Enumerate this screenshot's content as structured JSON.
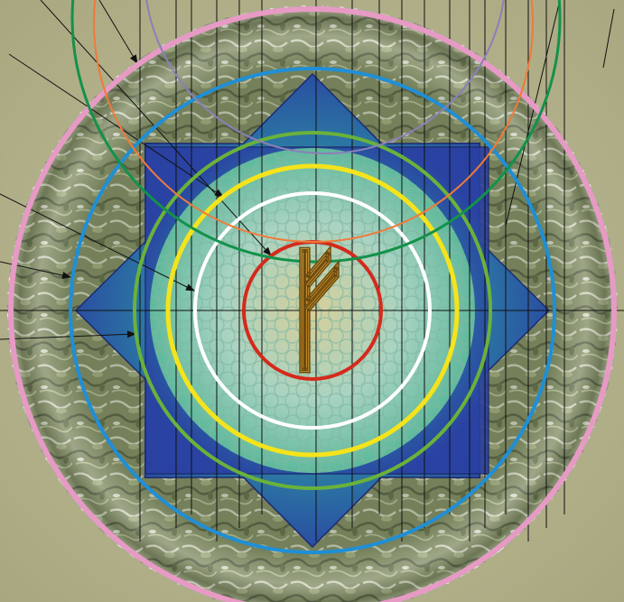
{
  "emblem": {
    "glyph": "ᚠ",
    "corner_mark": ""
  },
  "colors": {
    "background": "#b7b58f",
    "rim_stone": "#7f8a63",
    "star_blue": "#2b46a6",
    "star_green": "#2f8f6a",
    "inner_glow": "#9bd2c0",
    "glyph_gold": "#d8a63a",
    "ring_pink": "#e79ac4",
    "ring_blue": "#1f8fd6",
    "ring_green_a": "#6ab23a",
    "ring_yellow": "#f5e31c",
    "ring_white": "#ffffff",
    "ring_red": "#d42a1c",
    "ring_orange": "#f07a3a",
    "ring_dark_green": "#13924a",
    "ring_purple": "#8a80b8"
  },
  "rings": [
    {
      "name": "outer-rim-ring",
      "color": "ring_pink"
    },
    {
      "name": "star-outer-ring",
      "color": "ring_blue"
    },
    {
      "name": "square-inner-ring",
      "color": "ring_green_a"
    },
    {
      "name": "medallion-ring",
      "color": "ring_yellow"
    },
    {
      "name": "inner-disc-ring",
      "color": "ring_white"
    },
    {
      "name": "glyph-ring",
      "color": "ring_red"
    }
  ],
  "external_rings": [
    {
      "name": "orange-projection-ring",
      "color": "ring_orange"
    },
    {
      "name": "green-projection-ring",
      "color": "ring_dark_green"
    },
    {
      "name": "purple-projection-ring",
      "color": "ring_purple"
    }
  ]
}
